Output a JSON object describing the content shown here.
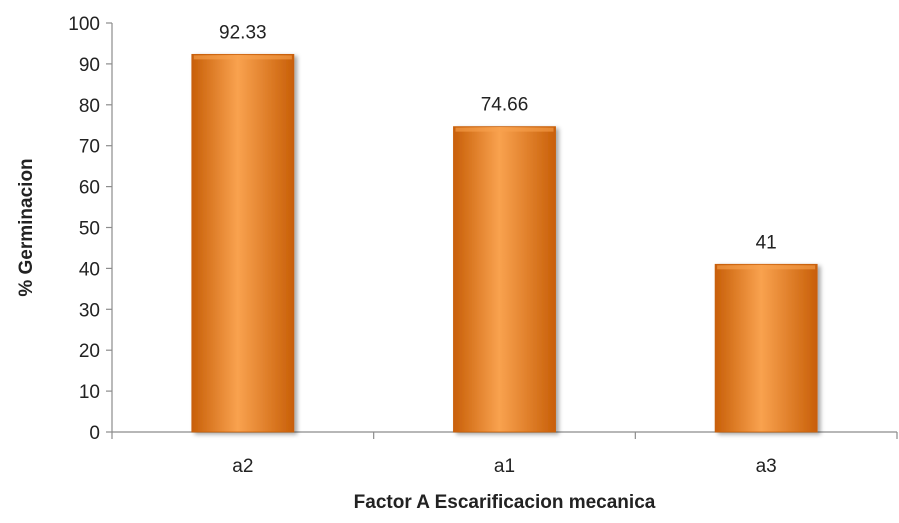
{
  "chart_data": {
    "type": "bar",
    "categories": [
      "a2",
      "a1",
      "a3"
    ],
    "values": [
      92.33,
      74.66,
      41
    ],
    "data_labels": [
      "92.33",
      "74.66",
      "41"
    ],
    "title": "",
    "xlabel": "Factor A Escarificacion mecanica",
    "ylabel": "% Germinacion",
    "ylim": [
      0,
      100
    ],
    "yticks": [
      0,
      10,
      20,
      30,
      40,
      50,
      60,
      70,
      80,
      90,
      100
    ],
    "grid": false,
    "legend": "none",
    "bar_color": "#F07B14",
    "bar_highlight": "#F9A24F",
    "bar_shadow": "#C85F08"
  }
}
